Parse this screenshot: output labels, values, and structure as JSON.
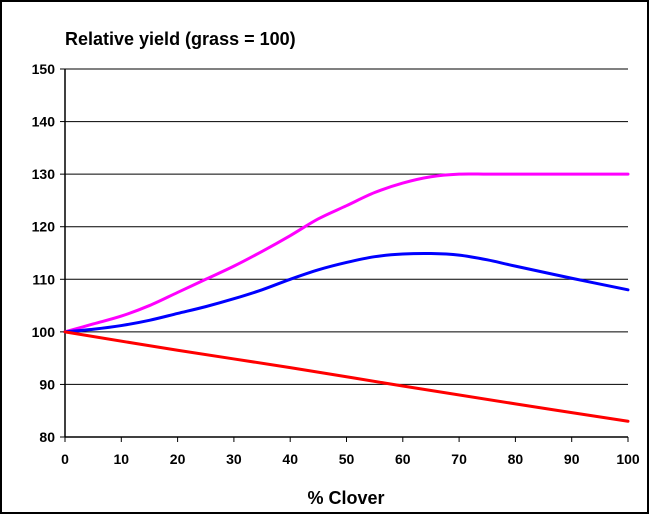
{
  "chart_data": {
    "type": "line",
    "title": "Relative yield (grass = 100)",
    "xlabel": "% Clover",
    "ylabel": "",
    "xlim": [
      0,
      100
    ],
    "ylim": [
      80,
      150
    ],
    "xticks": [
      0,
      10,
      20,
      30,
      40,
      50,
      60,
      70,
      80,
      90,
      100
    ],
    "yticks": [
      80,
      90,
      100,
      110,
      120,
      130,
      140,
      150
    ],
    "grid": "horizontal",
    "legend": "none",
    "series": [
      {
        "color": "#ff00ff",
        "x": [
          0,
          5,
          10,
          15,
          20,
          25,
          30,
          35,
          40,
          45,
          50,
          55,
          60,
          65,
          70,
          75,
          80,
          90,
          100
        ],
        "y": [
          100,
          101.5,
          103,
          105,
          107.5,
          110,
          112.5,
          115.3,
          118.3,
          121.5,
          124,
          126.5,
          128.3,
          129.5,
          130,
          130,
          130,
          130,
          130
        ]
      },
      {
        "color": "#0000ff",
        "x": [
          0,
          5,
          10,
          15,
          20,
          25,
          30,
          35,
          40,
          45,
          50,
          55,
          60,
          65,
          70,
          75,
          80,
          90,
          100
        ],
        "y": [
          100,
          100.5,
          101.2,
          102.2,
          103.5,
          104.8,
          106.3,
          108,
          110,
          111.8,
          113.2,
          114.3,
          114.8,
          114.9,
          114.6,
          113.7,
          112.5,
          110.2,
          108
        ]
      },
      {
        "color": "#ff0000",
        "x": [
          0,
          20,
          40,
          60,
          80,
          100
        ],
        "y": [
          100,
          96.5,
          93.2,
          89.7,
          86.3,
          83
        ]
      }
    ]
  }
}
